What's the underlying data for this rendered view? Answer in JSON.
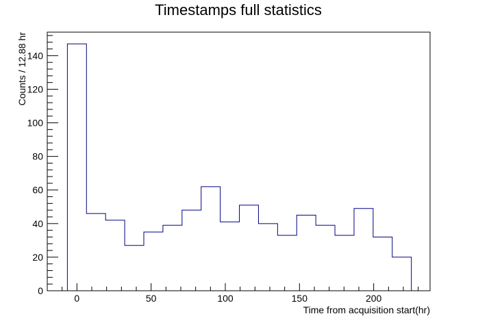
{
  "chart_data": {
    "type": "bar",
    "title": "Timestamps full statistics",
    "xlabel": "Time from acquisition start(hr)",
    "ylabel": "Counts / 12.88 hr",
    "bin_width": 12.88,
    "bin_start": -6.44,
    "values": [
      147,
      46,
      42,
      27,
      35,
      39,
      48,
      62,
      41,
      51,
      40,
      33,
      45,
      39,
      33,
      49,
      32,
      20
    ],
    "xlim": [
      -20,
      238
    ],
    "ylim": [
      0,
      154
    ],
    "x_ticks": [
      0,
      50,
      100,
      150,
      200
    ],
    "x_tick_labels": [
      "0",
      "50",
      "100",
      "150",
      "200"
    ],
    "y_ticks": [
      0,
      20,
      40,
      60,
      80,
      100,
      120,
      140
    ],
    "y_tick_labels": [
      "0",
      "20",
      "40",
      "60",
      "80",
      "100",
      "120",
      "140"
    ],
    "grid": false,
    "colors": {
      "line": "#000080",
      "frame": "#000000",
      "background": "#ffffff"
    }
  }
}
